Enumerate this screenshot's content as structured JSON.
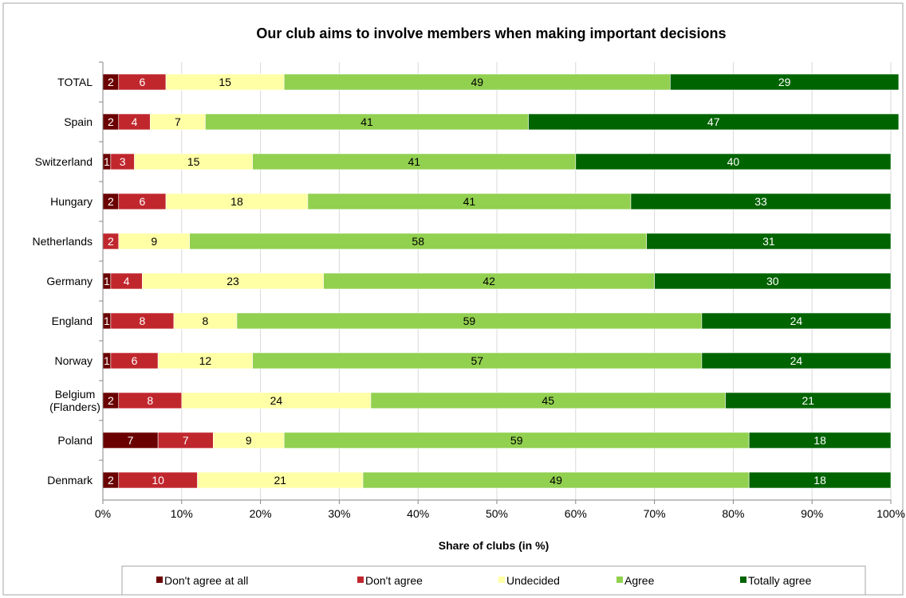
{
  "chart_data": {
    "type": "bar",
    "orientation": "horizontal",
    "stacked": true,
    "title": "Our club aims to involve members when making important decisions",
    "xlabel": "Share of clubs (in %)",
    "ylabel": "",
    "xlim": [
      0,
      100
    ],
    "x_ticks": [
      "0%",
      "10%",
      "20%",
      "30%",
      "40%",
      "50%",
      "60%",
      "70%",
      "80%",
      "90%",
      "100%"
    ],
    "grid": true,
    "legend_position": "bottom",
    "categories": [
      [
        "TOTAL"
      ],
      [
        "Spain"
      ],
      [
        "Switzerland"
      ],
      [
        "Hungary"
      ],
      [
        "Netherlands"
      ],
      [
        "Germany"
      ],
      [
        "England"
      ],
      [
        "Norway"
      ],
      [
        "Belgium",
        "(Flanders)"
      ],
      [
        "Poland"
      ],
      [
        "Denmark"
      ]
    ],
    "series": [
      {
        "name": "Don't agree at all",
        "color": "#6B0000",
        "label_color": "#ffffff",
        "values": [
          2,
          2,
          1,
          2,
          0,
          1,
          1,
          1,
          2,
          7,
          2
        ]
      },
      {
        "name": "Don't agree",
        "color": "#C0272D",
        "label_color": "#ffffff",
        "values": [
          6,
          4,
          3,
          6,
          2,
          4,
          8,
          6,
          8,
          7,
          10
        ]
      },
      {
        "name": "Undecided",
        "color": "#FFFFA6",
        "label_color": "#000000",
        "values": [
          15,
          7,
          15,
          18,
          9,
          23,
          8,
          12,
          24,
          9,
          21
        ]
      },
      {
        "name": "Agree",
        "color": "#92D050",
        "label_color": "#000000",
        "values": [
          49,
          41,
          41,
          41,
          58,
          42,
          59,
          57,
          45,
          59,
          49
        ]
      },
      {
        "name": "Totally agree",
        "color": "#006400",
        "label_color": "#ffffff",
        "values": [
          29,
          47,
          40,
          33,
          31,
          30,
          24,
          24,
          21,
          18,
          18
        ]
      }
    ]
  }
}
